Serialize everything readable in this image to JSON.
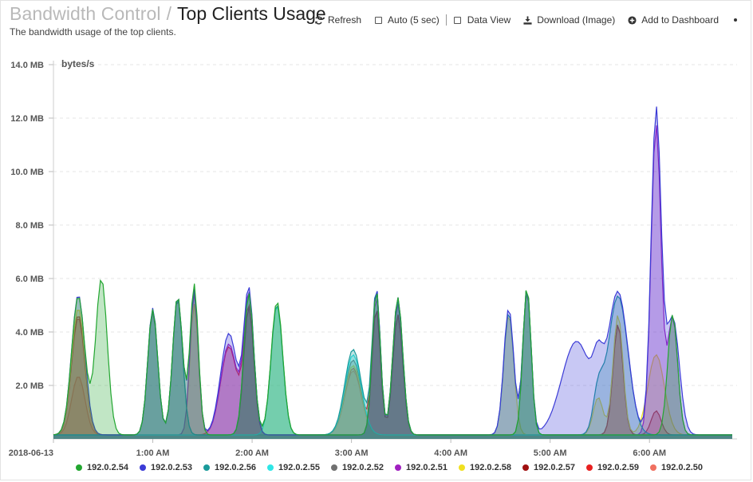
{
  "header": {
    "breadcrumb_parent": "Bandwidth Control",
    "separator": "/",
    "title": "Top Clients Usage",
    "subtitle": "The bandwidth usage of the top clients."
  },
  "toolbar": {
    "refresh_label": "Refresh",
    "auto_label": "Auto (5 sec)",
    "data_view_label": "Data View",
    "download_label": "Download (Image)",
    "add_dashboard_label": "Add to Dashboard"
  },
  "chart_data": {
    "type": "area",
    "ylabel": "bytes/s",
    "ylim": [
      0,
      14
    ],
    "y_unit": "MB",
    "y_ticks": [
      "14.0 MB",
      "12.0 MB",
      "10.0 MB",
      "8.0 MB",
      "6.0 MB",
      "4.0 MB",
      "2.0 MB"
    ],
    "x_ticks": [
      "2018-06-13",
      "1:00 AM",
      "2:00 AM",
      "3:00 AM",
      "4:00 AM",
      "5:00 AM",
      "6:00 AM"
    ],
    "x_tick_minutes": [
      0,
      60,
      120,
      180,
      240,
      300,
      360
    ],
    "x_range_minutes": [
      0,
      410
    ],
    "grid": true,
    "legend_position": "bottom",
    "series": [
      {
        "name": "192.0.2.54",
        "color": "#22a630",
        "peaks": [
          [
            15,
            5.2,
            4
          ],
          [
            29,
            5.85,
            3.5
          ],
          [
            60,
            4.7,
            3
          ],
          [
            75,
            5.2,
            3
          ],
          [
            85,
            5.65,
            2.5
          ],
          [
            118,
            5.3,
            3
          ],
          [
            135,
            5.0,
            3.5
          ],
          [
            195,
            5.4,
            2.5
          ],
          [
            208,
            5.15,
            3
          ],
          [
            286,
            5.55,
            2.5
          ],
          [
            374,
            4.5,
            3
          ]
        ]
      },
      {
        "name": "192.0.2.53",
        "color": "#3b3bd6",
        "peaks": [
          [
            15,
            5.25,
            4
          ],
          [
            60,
            4.75,
            3
          ],
          [
            75,
            5.2,
            3
          ],
          [
            85,
            5.45,
            2.5
          ],
          [
            106,
            3.8,
            5
          ],
          [
            118,
            5.35,
            3
          ],
          [
            195,
            5.5,
            2.5
          ],
          [
            208,
            5.15,
            3
          ],
          [
            275,
            4.75,
            3
          ],
          [
            286,
            5.5,
            2.5
          ],
          [
            316,
            3.5,
            9
          ],
          [
            329,
            1.6,
            3
          ],
          [
            341,
            5.3,
            6
          ],
          [
            364,
            12.1,
            3
          ],
          [
            374,
            4.4,
            4
          ]
        ]
      },
      {
        "name": "192.0.2.56",
        "color": "#1a9a9a",
        "peaks": [
          [
            60,
            4.7,
            3
          ],
          [
            75,
            5.15,
            3
          ],
          [
            118,
            5.35,
            3
          ],
          [
            135,
            4.9,
            3.5
          ],
          [
            181,
            3.2,
            5
          ],
          [
            195,
            5.45,
            2.5
          ],
          [
            208,
            5.05,
            3
          ],
          [
            275,
            4.6,
            3
          ],
          [
            286,
            5.5,
            2.5
          ],
          [
            329,
            1.5,
            3
          ],
          [
            341,
            5.2,
            6
          ]
        ]
      },
      {
        "name": "192.0.2.55",
        "color": "#2ee6e6",
        "peaks": [
          [
            135,
            4.85,
            3.5
          ],
          [
            181,
            3.0,
            5
          ]
        ]
      },
      {
        "name": "192.0.2.52",
        "color": "#707070",
        "peaks": [
          [
            60,
            4.6,
            3
          ],
          [
            75,
            5.1,
            3
          ],
          [
            181,
            2.8,
            5
          ],
          [
            286,
            5.4,
            2.5
          ]
        ]
      },
      {
        "name": "192.0.2.51",
        "color": "#a020c0",
        "peaks": [
          [
            85,
            5.3,
            2.5
          ],
          [
            106,
            3.4,
            5
          ],
          [
            118,
            5.2,
            3
          ],
          [
            195,
            5.2,
            2.5
          ],
          [
            208,
            4.9,
            3
          ],
          [
            364,
            11.6,
            3
          ],
          [
            374,
            4.4,
            3
          ]
        ]
      },
      {
        "name": "192.0.2.58",
        "color": "#f0e020",
        "peaks": [
          [
            15,
            4.75,
            4
          ],
          [
            85,
            4.9,
            2.5
          ],
          [
            181,
            2.6,
            5
          ],
          [
            275,
            4.5,
            3
          ],
          [
            329,
            1.4,
            3
          ],
          [
            341,
            4.5,
            3
          ],
          [
            364,
            3.0,
            5
          ]
        ]
      },
      {
        "name": "192.0.2.57",
        "color": "#a01010",
        "peaks": [
          [
            15,
            4.5,
            4
          ],
          [
            118,
            4.8,
            3
          ],
          [
            195,
            4.75,
            2.5
          ],
          [
            208,
            4.5,
            3
          ],
          [
            341,
            4.15,
            3
          ],
          [
            364,
            0.9,
            3
          ]
        ]
      },
      {
        "name": "192.0.2.59",
        "color": "#e82020",
        "peaks": [
          [
            15,
            4.4,
            4
          ],
          [
            106,
            3.3,
            5
          ],
          [
            118,
            4.7,
            3
          ],
          [
            181,
            2.5,
            5
          ],
          [
            195,
            4.7,
            2.5
          ],
          [
            208,
            4.5,
            3
          ],
          [
            341,
            4.1,
            3
          ]
        ]
      },
      {
        "name": "192.0.2.50",
        "color": "#f07060",
        "peaks": [
          [
            15,
            2.2,
            4
          ],
          [
            181,
            2.4,
            5
          ]
        ]
      }
    ]
  }
}
